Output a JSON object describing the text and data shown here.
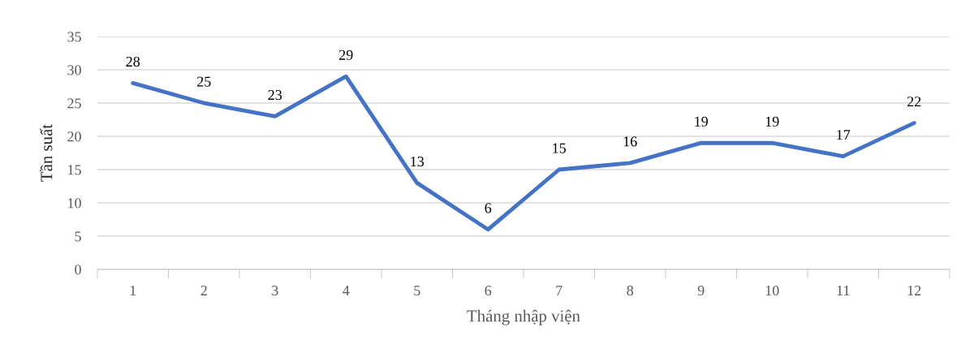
{
  "chart_data": {
    "type": "line",
    "xlabel": "Tháng nhập viện",
    "ylabel": "Tần suất",
    "categories": [
      "1",
      "2",
      "3",
      "4",
      "5",
      "6",
      "7",
      "8",
      "9",
      "10",
      "11",
      "12"
    ],
    "values": [
      28,
      25,
      23,
      29,
      13,
      6,
      15,
      16,
      19,
      19,
      17,
      22
    ],
    "color": "#4472c4",
    "ylim": [
      0,
      35
    ],
    "yticks": [
      0,
      5,
      10,
      15,
      20,
      25,
      30,
      35
    ],
    "grid": "y",
    "data_labels": true,
    "marker": "none",
    "line_style": "solid",
    "legend": false
  }
}
